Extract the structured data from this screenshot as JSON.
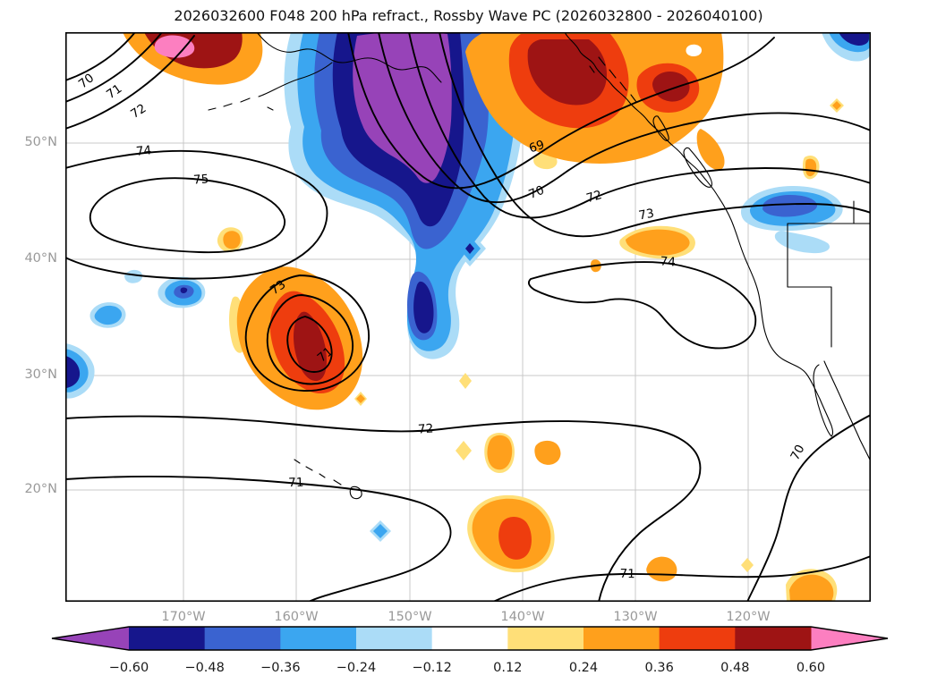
{
  "title": "2026032600 F048 200 hPa refract., Rossby Wave PC (2026032800 - 2026040100)",
  "chart_data": {
    "type": "heatmap",
    "subtype": "filled contour map (Rossby wave PC shading) with overlaid 200 hPa refraction line contours and coastlines over the North Pacific and western North America",
    "title": "2026032600 F048 200 hPa refract., Rossby Wave PC (2026032800 - 2026040100)",
    "x_tick_labels": [
      "170°W",
      "160°W",
      "150°W",
      "140°W",
      "130°W",
      "120°W"
    ],
    "y_tick_labels": [
      "50°N",
      "40°N",
      "30°N",
      "20°N"
    ],
    "grid": true,
    "contour_lines": {
      "color": "black solid",
      "levels_visible": [
        69,
        70,
        71,
        72,
        73,
        74,
        75
      ]
    },
    "contour_labels": [
      "70",
      "71",
      "72",
      "74",
      "75",
      "69",
      "70",
      "72",
      "73",
      "74",
      "73",
      "71",
      "72",
      "71",
      "70",
      "71"
    ],
    "shaded_field": "Rossby Wave PC",
    "shaded_extremes": [
      {
        "sign": "negative",
        "value": "< -0.60",
        "location": "large trough centered near 150°W, 48-55°N"
      },
      {
        "sign": "positive",
        "value": "0.48 to 0.60",
        "location": "ridge over British Columbia / Gulf of Alaska near 135°W, 50-58°N"
      },
      {
        "sign": "positive",
        "value": "0.48 to 0.60",
        "location": "cyclonic cell near 160°W, 30-37°N"
      },
      {
        "sign": "positive",
        "value": "> 0.60",
        "location": "top-left corner near 57°N (pink core)"
      }
    ],
    "colorbar": {
      "orientation": "horizontal",
      "tick_labels": [
        "−0.60",
        "−0.48",
        "−0.36",
        "−0.24",
        "−0.12",
        "0.12",
        "0.24",
        "0.36",
        "0.48",
        "0.60"
      ],
      "boundaries": [
        -0.6,
        -0.48,
        -0.36,
        -0.24,
        -0.12,
        0.12,
        0.24,
        0.36,
        0.48,
        0.6
      ],
      "segment_colors": [
        "#16168c",
        "#3a63d0",
        "#3ba6f0",
        "#abdcf7",
        "#ffffff",
        "#ffdf78",
        "#ffa01c",
        "#ee3d0e",
        "#9e1414"
      ],
      "under_color": "#9743b8",
      "over_color": "#fc7fc0",
      "outline_color": "#000000",
      "tick_color": "#1a1a1a"
    },
    "style": {
      "gridline_color": "#c9c9c9",
      "tick_label_color": "#999999",
      "contour_color": "#000000",
      "background": "#ffffff"
    }
  }
}
